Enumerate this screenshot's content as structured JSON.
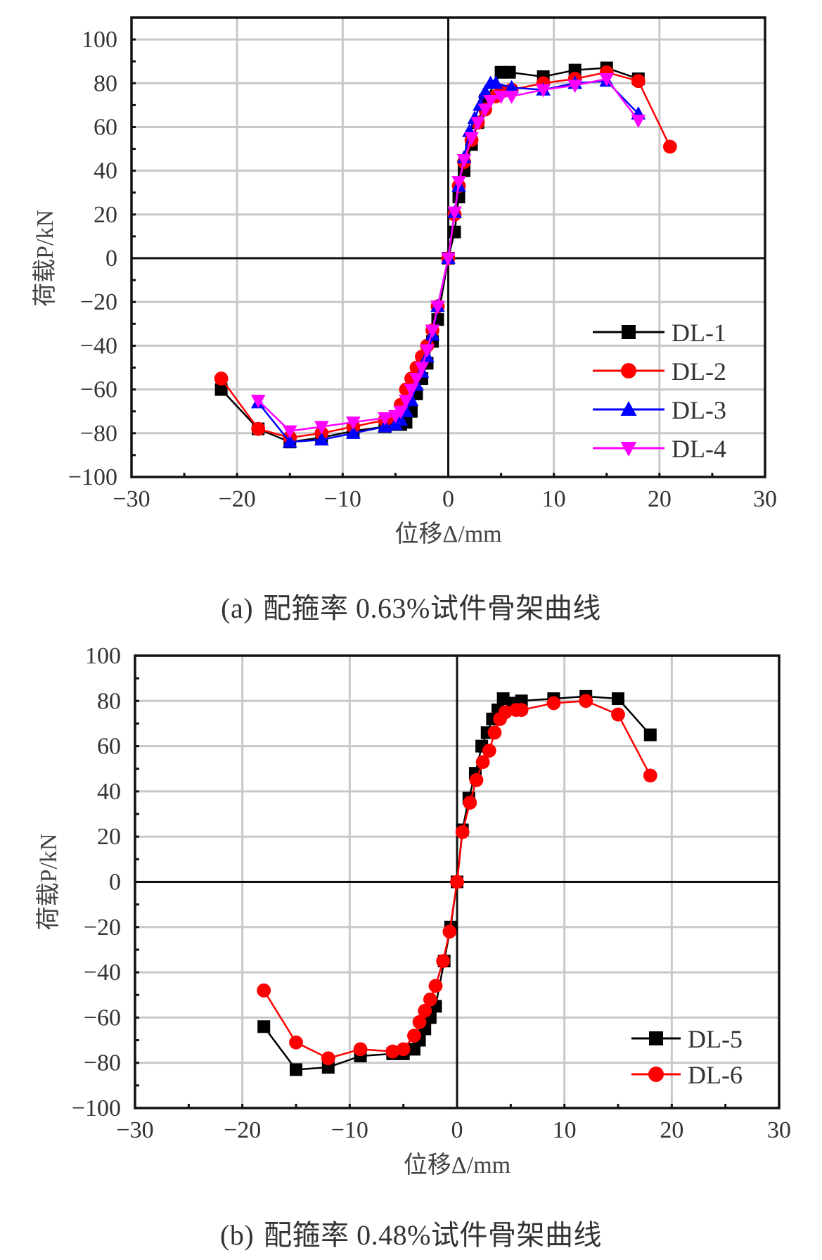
{
  "figures": [
    {
      "id": "a",
      "caption_label": "(a)",
      "caption_text": "配箍率 0.63%试件骨架曲线",
      "xlabel": "位移Δ/mm",
      "ylabel": "荷载P/kN"
    },
    {
      "id": "b",
      "caption_label": "(b)",
      "caption_text": "配箍率 0.48%试件骨架曲线",
      "xlabel": "位移Δ/mm",
      "ylabel": "荷载P/kN"
    }
  ],
  "chart_data": [
    {
      "type": "line",
      "title": "(a) 配箍率 0.63%试件骨架曲线",
      "xlabel": "位移Δ/mm",
      "ylabel": "荷载P/kN",
      "xlim": [
        -30,
        30
      ],
      "ylim": [
        -100,
        110
      ],
      "xticks": [
        -30,
        -20,
        -10,
        0,
        10,
        20,
        30
      ],
      "yticks": [
        -100,
        -80,
        -60,
        -40,
        -20,
        0,
        20,
        40,
        60,
        80,
        100
      ],
      "grid": true,
      "legend_position": "lower right",
      "series": [
        {
          "name": "DL-1",
          "color": "#000000",
          "marker": "square",
          "x": [
            -21.5,
            -18,
            -15,
            -12,
            -9,
            -6,
            -5,
            -4.5,
            -4,
            -3.5,
            -3,
            -2.5,
            -2,
            -1.5,
            -1,
            0,
            0.6,
            1,
            1.5,
            2.2,
            2.8,
            3.5,
            5,
            5.8,
            9,
            12,
            15,
            18
          ],
          "y": [
            -60,
            -78,
            -84,
            -82,
            -79,
            -77,
            -76,
            -76,
            -75,
            -70,
            -62,
            -55,
            -48,
            -38,
            -28,
            0,
            12,
            28,
            40,
            52,
            62,
            72,
            85,
            85,
            83,
            86,
            87,
            82
          ]
        },
        {
          "name": "DL-2",
          "color": "#ff0000",
          "marker": "circle",
          "x": [
            -21.5,
            -18,
            -15,
            -12,
            -9,
            -6,
            -5,
            -4.5,
            -4,
            -3.5,
            -3,
            -2.5,
            -2,
            -1.5,
            -1,
            0,
            0.6,
            1,
            1.5,
            2.2,
            2.8,
            3.5,
            4.5,
            5,
            6,
            9,
            12,
            15,
            18,
            21
          ],
          "y": [
            -55,
            -78,
            -82,
            -80,
            -77,
            -74,
            -73,
            -67,
            -60,
            -55,
            -50,
            -45,
            -40,
            -33,
            -22,
            0,
            20,
            33,
            44,
            54,
            62,
            68,
            74,
            76,
            77,
            80,
            82,
            85,
            81,
            51
          ]
        },
        {
          "name": "DL-3",
          "color": "#0000ff",
          "marker": "triangle-up",
          "x": [
            -18,
            -15,
            -12,
            -9,
            -6,
            -5,
            -4.5,
            -4,
            -3.5,
            -3,
            -2.5,
            -2,
            -1.5,
            -1,
            0,
            0.6,
            1,
            1.5,
            2,
            2.5,
            3,
            3.5,
            4,
            4.5,
            6,
            9,
            12,
            15,
            18
          ],
          "y": [
            -66,
            -84,
            -83,
            -80,
            -77,
            -76,
            -74,
            -70,
            -65,
            -58,
            -52,
            -45,
            -35,
            -22,
            0,
            21,
            33,
            46,
            58,
            64,
            70,
            76,
            80,
            80,
            78,
            77,
            80,
            81,
            66
          ]
        },
        {
          "name": "DL-4",
          "color": "#ff00ff",
          "marker": "triangle-down",
          "x": [
            -18,
            -15,
            -12,
            -9,
            -6,
            -5,
            -4.5,
            -4,
            -3.5,
            -3,
            -2.5,
            -2,
            -1.5,
            -1,
            0,
            0.6,
            1,
            1.5,
            2.2,
            2.8,
            3.5,
            4,
            5,
            6,
            9,
            12,
            15,
            18
          ],
          "y": [
            -65,
            -79,
            -77,
            -75,
            -73,
            -72,
            -70,
            -65,
            -60,
            -55,
            -50,
            -42,
            -33,
            -22,
            0,
            21,
            35,
            45,
            55,
            62,
            68,
            72,
            74,
            74,
            77,
            79,
            82,
            63
          ]
        }
      ]
    },
    {
      "type": "line",
      "title": "(b) 配箍率 0.48%试件骨架曲线",
      "xlabel": "位移Δ/mm",
      "ylabel": "荷载P/kN",
      "xlim": [
        -30,
        30
      ],
      "ylim": [
        -100,
        100
      ],
      "xticks": [
        -30,
        -20,
        -10,
        0,
        10,
        20,
        30
      ],
      "yticks": [
        -100,
        -80,
        -60,
        -40,
        -20,
        0,
        20,
        40,
        60,
        80,
        100
      ],
      "grid": true,
      "legend_position": "lower right",
      "series": [
        {
          "name": "DL-5",
          "color": "#000000",
          "marker": "square",
          "x": [
            -18,
            -15,
            -12,
            -9,
            -6,
            -5,
            -4,
            -3.5,
            -3,
            -2.5,
            -2,
            -1.2,
            -0.6,
            0,
            0.5,
            1.1,
            1.7,
            2.3,
            2.8,
            3.3,
            3.8,
            4.3,
            5.2,
            6,
            9,
            12,
            15,
            18
          ],
          "y": [
            -64,
            -83,
            -82,
            -77,
            -76,
            -76,
            -74,
            -70,
            -65,
            -60,
            -55,
            -35,
            -20,
            0,
            23,
            37,
            48,
            60,
            66,
            72,
            76,
            81,
            79,
            80,
            81,
            82,
            81,
            65
          ]
        },
        {
          "name": "DL-6",
          "color": "#ff0000",
          "marker": "circle",
          "x": [
            -18,
            -15,
            -12,
            -9,
            -6,
            -5,
            -4,
            -3.5,
            -3,
            -2.5,
            -2,
            -1.3,
            -0.7,
            0,
            0.5,
            1.2,
            1.8,
            2.4,
            3,
            3.5,
            4,
            4.5,
            5.5,
            6,
            9,
            12,
            15,
            18
          ],
          "y": [
            -48,
            -71,
            -78,
            -74,
            -75,
            -74,
            -68,
            -62,
            -57,
            -52,
            -46,
            -35,
            -22,
            0,
            22,
            35,
            45,
            53,
            58,
            66,
            72,
            75,
            76,
            76,
            79,
            80,
            74,
            47
          ]
        }
      ]
    }
  ]
}
